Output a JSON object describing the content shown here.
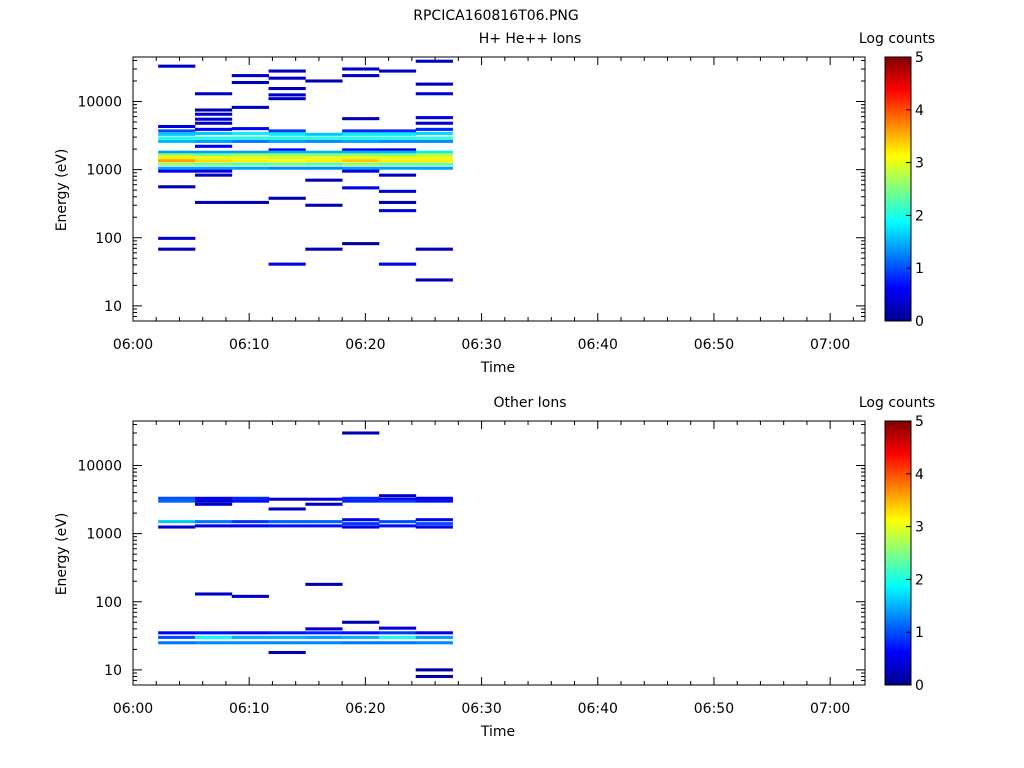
{
  "figure_title": "RPCICA160816T06.PNG",
  "colors": {
    "colormap": [
      "#00008f",
      "#0000ff",
      "#0080ff",
      "#00ffff",
      "#80ff80",
      "#ffff00",
      "#ff8000",
      "#ff0000",
      "#800000"
    ]
  },
  "chart_data": [
    {
      "type": "heatmap",
      "title": "H+ He++ Ions",
      "xlabel": "Time",
      "ylabel": "Energy (eV)",
      "y_scale": "log",
      "xlim": [
        "06:00",
        "07:03"
      ],
      "ylim": [
        6,
        45000
      ],
      "x_ticks": [
        "06:00",
        "06:10",
        "06:20",
        "06:30",
        "06:40",
        "06:50",
        "07:00"
      ],
      "y_ticks": [
        "10",
        "100",
        "1000",
        "10000"
      ],
      "colorbar": {
        "label": "Log counts",
        "range": [
          0,
          5
        ],
        "ticks": [
          "0",
          "1",
          "2",
          "3",
          "4",
          "5"
        ]
      },
      "time_bins": [
        "06:02:10",
        "06:05:20",
        "06:08:30",
        "06:11:40",
        "06:14:50",
        "06:18:00",
        "06:21:10",
        "06:24:20",
        "06:27:30"
      ],
      "cells": [
        [
          0,
          33000,
          0.3
        ],
        [
          0,
          4300,
          0.4
        ],
        [
          0,
          3700,
          1.0
        ],
        [
          0,
          3300,
          1.6
        ],
        [
          0,
          2900,
          2.0
        ],
        [
          0,
          2600,
          1.5
        ],
        [
          0,
          1800,
          1.4
        ],
        [
          0,
          1650,
          2.6
        ],
        [
          0,
          1500,
          3.2
        ],
        [
          0,
          1350,
          3.6
        ],
        [
          0,
          1200,
          2.6
        ],
        [
          0,
          1050,
          1.4
        ],
        [
          0,
          950,
          0.6
        ],
        [
          0,
          560,
          0.2
        ],
        [
          0,
          98,
          0.4
        ],
        [
          0,
          68,
          0.2
        ],
        [
          1,
          13000,
          0.3
        ],
        [
          1,
          7500,
          0.2
        ],
        [
          1,
          6500,
          0.3
        ],
        [
          1,
          5500,
          0.4
        ],
        [
          1,
          4800,
          0.3
        ],
        [
          1,
          3900,
          0.6
        ],
        [
          1,
          3400,
          1.6
        ],
        [
          1,
          2900,
          2.0
        ],
        [
          1,
          2600,
          1.4
        ],
        [
          1,
          2200,
          0.6
        ],
        [
          1,
          1800,
          1.4
        ],
        [
          1,
          1650,
          2.4
        ],
        [
          1,
          1500,
          3.0
        ],
        [
          1,
          1350,
          3.3
        ],
        [
          1,
          1200,
          2.4
        ],
        [
          1,
          1050,
          1.4
        ],
        [
          1,
          950,
          0.4
        ],
        [
          1,
          830,
          0.3
        ],
        [
          1,
          330,
          0.2
        ],
        [
          2,
          24000,
          0.3
        ],
        [
          2,
          19000,
          0.2
        ],
        [
          2,
          8200,
          0.3
        ],
        [
          2,
          4000,
          0.6
        ],
        [
          2,
          3400,
          1.8
        ],
        [
          2,
          2900,
          2.0
        ],
        [
          2,
          2600,
          1.2
        ],
        [
          2,
          1800,
          1.4
        ],
        [
          2,
          1650,
          2.6
        ],
        [
          2,
          1500,
          3.0
        ],
        [
          2,
          1350,
          3.2
        ],
        [
          2,
          1200,
          2.3
        ],
        [
          2,
          1050,
          1.4
        ],
        [
          2,
          330,
          0.2
        ],
        [
          3,
          28000,
          0.3
        ],
        [
          3,
          22000,
          0.3
        ],
        [
          3,
          15500,
          0.2
        ],
        [
          3,
          12500,
          0.3
        ],
        [
          3,
          11000,
          0.3
        ],
        [
          3,
          3700,
          0.9
        ],
        [
          3,
          3300,
          1.8
        ],
        [
          3,
          2900,
          2.0
        ],
        [
          3,
          2600,
          1.4
        ],
        [
          3,
          1950,
          0.6
        ],
        [
          3,
          1800,
          1.5
        ],
        [
          3,
          1650,
          2.6
        ],
        [
          3,
          1500,
          2.9
        ],
        [
          3,
          1350,
          3.1
        ],
        [
          3,
          1200,
          2.4
        ],
        [
          3,
          1050,
          1.3
        ],
        [
          3,
          380,
          0.2
        ],
        [
          3,
          41,
          0.5
        ],
        [
          4,
          20000,
          0.2
        ],
        [
          4,
          3300,
          1.6
        ],
        [
          4,
          2900,
          2.0
        ],
        [
          4,
          2600,
          1.3
        ],
        [
          4,
          1800,
          1.5
        ],
        [
          4,
          1650,
          2.5
        ],
        [
          4,
          1500,
          3.0
        ],
        [
          4,
          1350,
          3.2
        ],
        [
          4,
          1200,
          2.3
        ],
        [
          4,
          1050,
          1.3
        ],
        [
          4,
          700,
          0.2
        ],
        [
          4,
          300,
          0.2
        ],
        [
          4,
          68,
          0.2
        ],
        [
          5,
          30000,
          0.3
        ],
        [
          5,
          24000,
          0.3
        ],
        [
          5,
          5600,
          0.2
        ],
        [
          5,
          3700,
          0.8
        ],
        [
          5,
          3300,
          1.8
        ],
        [
          5,
          2900,
          2.0
        ],
        [
          5,
          2600,
          1.4
        ],
        [
          5,
          1950,
          0.6
        ],
        [
          5,
          1800,
          1.5
        ],
        [
          5,
          1650,
          2.6
        ],
        [
          5,
          1500,
          3.0
        ],
        [
          5,
          1350,
          3.4
        ],
        [
          5,
          1200,
          2.6
        ],
        [
          5,
          1050,
          1.4
        ],
        [
          5,
          950,
          0.4
        ],
        [
          5,
          540,
          0.5
        ],
        [
          5,
          82,
          0.1
        ],
        [
          6,
          28000,
          0.3
        ],
        [
          6,
          3700,
          0.8
        ],
        [
          6,
          3300,
          1.8
        ],
        [
          6,
          2900,
          2.0
        ],
        [
          6,
          2600,
          1.3
        ],
        [
          6,
          1950,
          0.5
        ],
        [
          6,
          1800,
          1.5
        ],
        [
          6,
          1650,
          2.5
        ],
        [
          6,
          1500,
          3.0
        ],
        [
          6,
          1350,
          3.2
        ],
        [
          6,
          1200,
          2.4
        ],
        [
          6,
          1050,
          1.4
        ],
        [
          6,
          830,
          0.3
        ],
        [
          6,
          480,
          0.4
        ],
        [
          6,
          330,
          0.2
        ],
        [
          6,
          250,
          0.4
        ],
        [
          6,
          41,
          0.5
        ],
        [
          7,
          39000,
          0.3
        ],
        [
          7,
          18000,
          0.2
        ],
        [
          7,
          13000,
          0.4
        ],
        [
          7,
          5800,
          0.5
        ],
        [
          7,
          4800,
          0.3
        ],
        [
          7,
          3900,
          0.8
        ],
        [
          7,
          3400,
          1.7
        ],
        [
          7,
          2900,
          2.1
        ],
        [
          7,
          2600,
          1.3
        ],
        [
          7,
          1800,
          1.8
        ],
        [
          7,
          1650,
          2.8
        ],
        [
          7,
          1500,
          3.0
        ],
        [
          7,
          1350,
          3.2
        ],
        [
          7,
          1200,
          2.4
        ],
        [
          7,
          1050,
          1.4
        ],
        [
          7,
          68,
          0.2
        ],
        [
          7,
          24,
          0.2
        ]
      ]
    },
    {
      "type": "heatmap",
      "title": "Other Ions",
      "xlabel": "Time",
      "ylabel": "Energy (eV)",
      "y_scale": "log",
      "xlim": [
        "06:00",
        "07:03"
      ],
      "ylim": [
        6,
        45000
      ],
      "x_ticks": [
        "06:00",
        "06:10",
        "06:20",
        "06:30",
        "06:40",
        "06:50",
        "07:00"
      ],
      "y_ticks": [
        "10",
        "100",
        "1000",
        "10000"
      ],
      "colorbar": {
        "label": "Log counts",
        "range": [
          0,
          5
        ],
        "ticks": [
          "0",
          "1",
          "2",
          "3",
          "4",
          "5"
        ]
      },
      "time_bins": [
        "06:02:10",
        "06:05:20",
        "06:08:30",
        "06:11:40",
        "06:14:50",
        "06:18:00",
        "06:21:10",
        "06:24:20",
        "06:27:30"
      ],
      "cells": [
        [
          0,
          3300,
          1.0
        ],
        [
          0,
          3000,
          1.1
        ],
        [
          0,
          1500,
          1.6
        ],
        [
          0,
          1250,
          0.4
        ],
        [
          0,
          35,
          0.6
        ],
        [
          0,
          30,
          1.0
        ],
        [
          0,
          25,
          1.2
        ],
        [
          1,
          3300,
          0.5
        ],
        [
          1,
          3000,
          0.4
        ],
        [
          1,
          2700,
          0.3
        ],
        [
          1,
          1500,
          1.2
        ],
        [
          1,
          1300,
          0.5
        ],
        [
          1,
          130,
          0.3
        ],
        [
          1,
          35,
          0.7
        ],
        [
          1,
          30,
          1.9
        ],
        [
          1,
          25,
          1.3
        ],
        [
          2,
          3300,
          0.8
        ],
        [
          2,
          3000,
          0.7
        ],
        [
          2,
          1500,
          0.9
        ],
        [
          2,
          1300,
          0.6
        ],
        [
          2,
          120,
          0.3
        ],
        [
          2,
          35,
          0.6
        ],
        [
          2,
          30,
          1.5
        ],
        [
          2,
          25,
          1.3
        ],
        [
          3,
          3200,
          0.4
        ],
        [
          3,
          2300,
          0.3
        ],
        [
          3,
          1500,
          1.1
        ],
        [
          3,
          1300,
          0.7
        ],
        [
          3,
          35,
          0.7
        ],
        [
          3,
          30,
          1.5
        ],
        [
          3,
          25,
          1.3
        ],
        [
          3,
          18,
          0.3
        ],
        [
          4,
          3200,
          0.4
        ],
        [
          4,
          2700,
          0.3
        ],
        [
          4,
          1500,
          1.1
        ],
        [
          4,
          1300,
          0.7
        ],
        [
          4,
          180,
          0.2
        ],
        [
          4,
          40,
          0.4
        ],
        [
          4,
          35,
          0.8
        ],
        [
          4,
          30,
          1.4
        ],
        [
          4,
          25,
          1.3
        ],
        [
          5,
          30000,
          0.2
        ],
        [
          5,
          3300,
          0.8
        ],
        [
          5,
          3000,
          0.8
        ],
        [
          5,
          1600,
          0.6
        ],
        [
          5,
          1400,
          0.9
        ],
        [
          5,
          1250,
          0.5
        ],
        [
          5,
          50,
          0.2
        ],
        [
          5,
          35,
          0.7
        ],
        [
          5,
          30,
          1.5
        ],
        [
          5,
          25,
          1.2
        ],
        [
          6,
          3600,
          0.3
        ],
        [
          6,
          3200,
          0.6
        ],
        [
          6,
          3000,
          0.9
        ],
        [
          6,
          1500,
          1.0
        ],
        [
          6,
          1300,
          0.7
        ],
        [
          6,
          41,
          0.4
        ],
        [
          6,
          35,
          0.9
        ],
        [
          6,
          30,
          2.0
        ],
        [
          6,
          25,
          1.2
        ],
        [
          7,
          3300,
          0.5
        ],
        [
          7,
          3000,
          0.7
        ],
        [
          7,
          1600,
          0.6
        ],
        [
          7,
          1400,
          1.0
        ],
        [
          7,
          1250,
          0.5
        ],
        [
          7,
          35,
          0.5
        ],
        [
          7,
          30,
          1.4
        ],
        [
          7,
          25,
          1.3
        ],
        [
          7,
          10,
          0.1
        ],
        [
          7,
          8,
          0.1
        ]
      ]
    }
  ]
}
